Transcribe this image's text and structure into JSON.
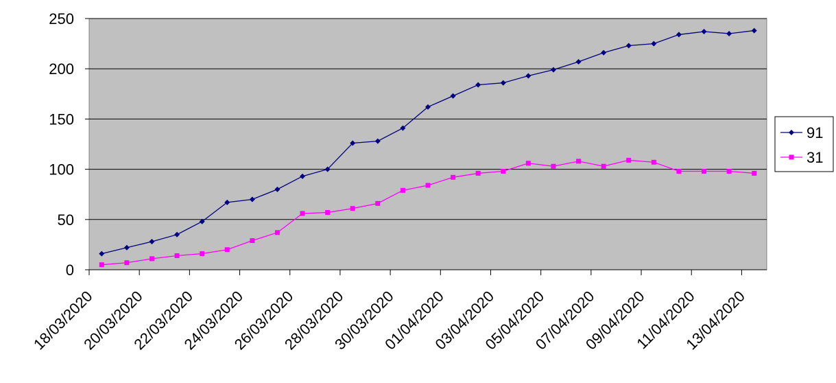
{
  "chart_data": {
    "type": "line",
    "categories": [
      "18/03/2020",
      null,
      "20/03/2020",
      null,
      "22/03/2020",
      null,
      "24/03/2020",
      null,
      "26/03/2020",
      null,
      "28/03/2020",
      null,
      "30/03/2020",
      null,
      "01/04/2020",
      null,
      "03/04/2020",
      null,
      "05/04/2020",
      null,
      "07/04/2020",
      null,
      "09/04/2020",
      null,
      "11/04/2020",
      null,
      "13/04/2020"
    ],
    "series": [
      {
        "name": "91",
        "color": "#000080",
        "marker": "diamond",
        "values": [
          16,
          22,
          28,
          35,
          48,
          67,
          70,
          80,
          93,
          100,
          126,
          128,
          141,
          162,
          173,
          184,
          186,
          193,
          199,
          207,
          216,
          223,
          225,
          234,
          237,
          235,
          238
        ]
      },
      {
        "name": "31",
        "color": "#ff00ff",
        "marker": "square",
        "values": [
          5,
          7,
          11,
          14,
          16,
          20,
          29,
          37,
          56,
          57,
          61,
          66,
          79,
          84,
          92,
          96,
          98,
          106,
          103,
          108,
          103,
          109,
          107,
          98,
          98,
          98,
          96
        ]
      }
    ],
    "ylim": [
      0,
      250
    ],
    "yticks": [
      0,
      50,
      100,
      150,
      200,
      250
    ],
    "grid": true,
    "legend": "right"
  }
}
